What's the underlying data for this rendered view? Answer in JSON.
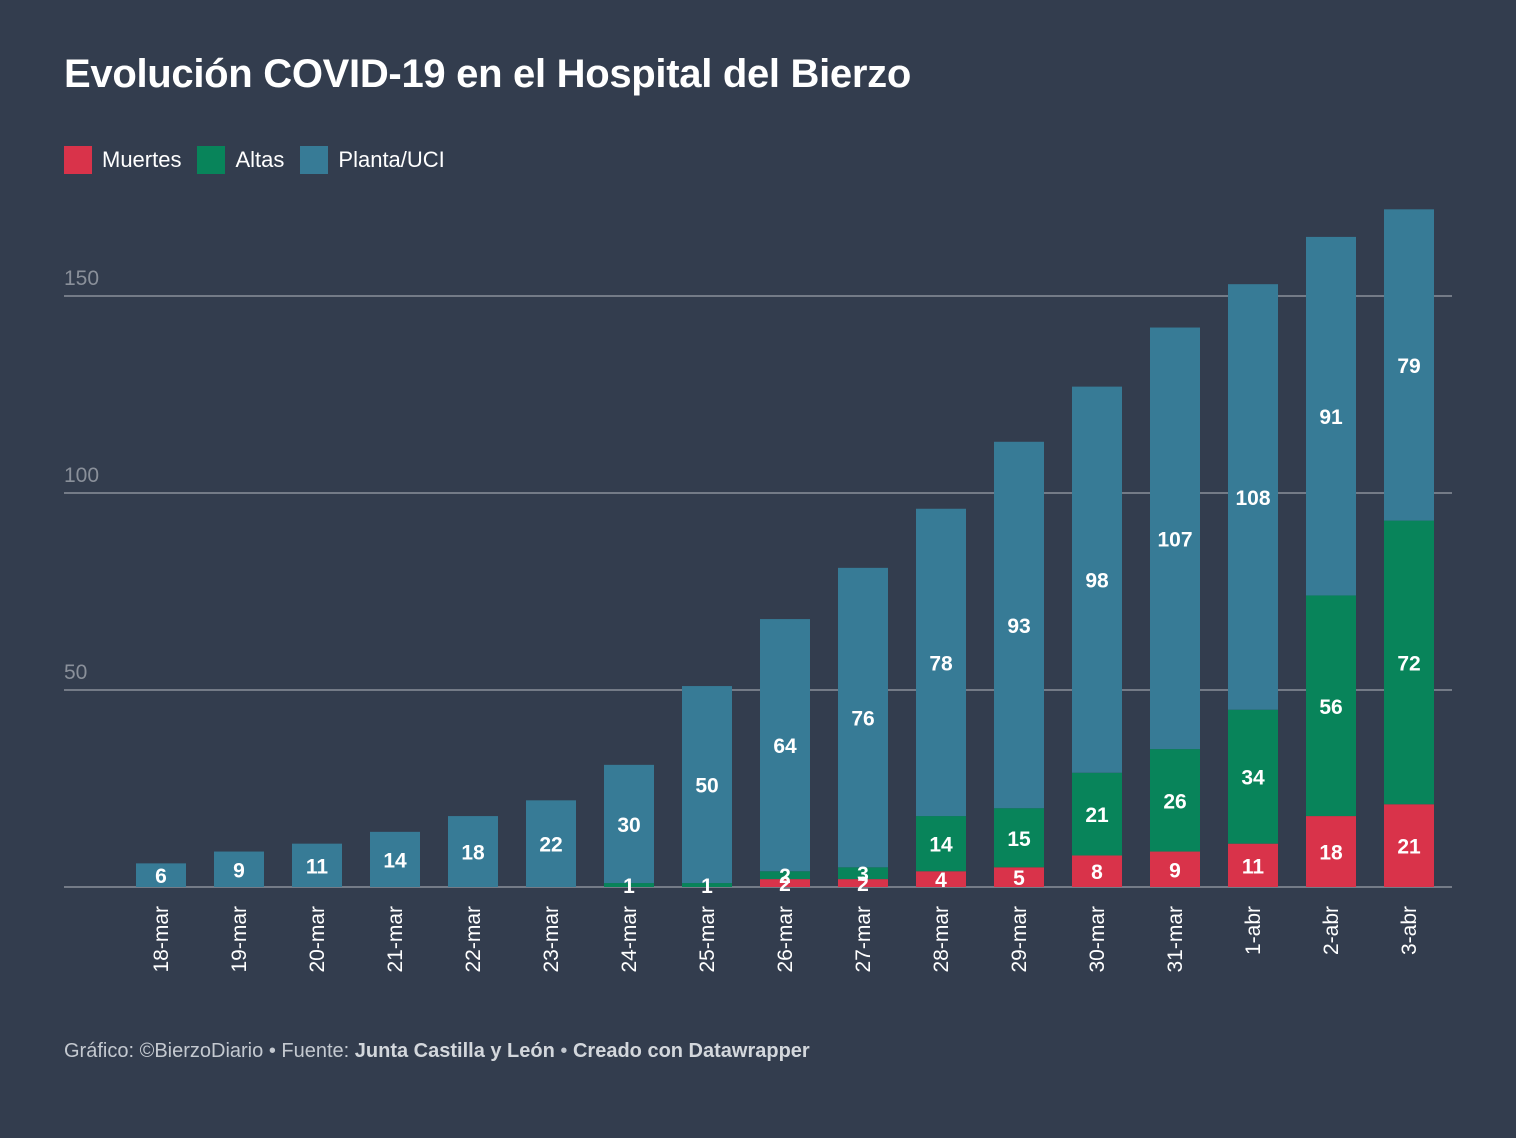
{
  "title": "Evolución COVID-19 en el Hospital del Bierzo",
  "legend": [
    {
      "label": "Muertes",
      "color": "#d9334a"
    },
    {
      "label": "Altas",
      "color": "#08845a"
    },
    {
      "label": "Planta/UCI",
      "color": "#377b96"
    }
  ],
  "footer": {
    "credit_prefix": "Gráfico: ©BierzoDiario",
    "sep1": "•",
    "source_prefix": "Fuente:",
    "source": "Junta Castilla y León",
    "sep2": "•",
    "made_with": "Creado con Datawrapper"
  },
  "colors": {
    "background": "#333d4e",
    "gridline": "#8a909a",
    "tick_label": "#8a909a",
    "axis_label": "#ffffff"
  },
  "chart_data": {
    "type": "bar",
    "stacked": true,
    "categories": [
      "18-mar",
      "19-mar",
      "20-mar",
      "21-mar",
      "22-mar",
      "23-mar",
      "24-mar",
      "25-mar",
      "26-mar",
      "27-mar",
      "28-mar",
      "29-mar",
      "30-mar",
      "31-mar",
      "1-abr",
      "2-abr",
      "3-abr"
    ],
    "series": [
      {
        "name": "Muertes",
        "values": [
          0,
          0,
          0,
          0,
          0,
          0,
          0,
          0,
          2,
          2,
          4,
          5,
          8,
          9,
          11,
          18,
          21
        ]
      },
      {
        "name": "Altas",
        "values": [
          0,
          0,
          0,
          0,
          0,
          0,
          1,
          1,
          2,
          3,
          14,
          15,
          21,
          26,
          34,
          56,
          72
        ]
      },
      {
        "name": "Planta/UCI",
        "values": [
          6,
          9,
          11,
          14,
          18,
          22,
          30,
          50,
          64,
          76,
          78,
          93,
          98,
          107,
          108,
          91,
          79
        ]
      }
    ],
    "yticks": [
      50,
      100,
      150
    ],
    "ylim": [
      0,
      175
    ],
    "grid": true,
    "legend_position": "top-left",
    "x_label_rotation": "vertical"
  }
}
